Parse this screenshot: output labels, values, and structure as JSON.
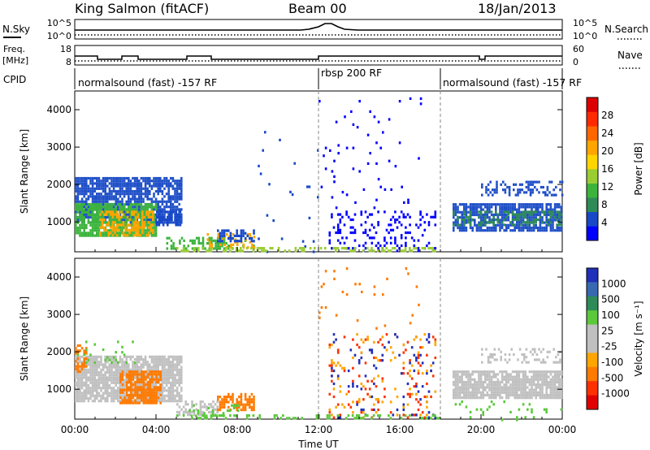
{
  "header": {
    "station": "King Salmon (fitACF)",
    "beam": "Beam 00",
    "date": "18/Jan/2013"
  },
  "summary": {
    "nsky_label": "N.Sky",
    "nsky_ticks": [
      "10^5",
      "10^0"
    ],
    "nsearch_label": "N.Search",
    "nsearch_ticks": [
      "10^5",
      "10^0"
    ],
    "freq_label_line1": "Freq.",
    "freq_label_line2": "[MHz]",
    "freq_ticks": [
      "18",
      "8"
    ],
    "nave_label": "Nave",
    "nave_ticks": [
      "60",
      "0"
    ],
    "cpid_label": "CPID",
    "cpid_segments": [
      {
        "label": "normalsound (fast) -157 RF",
        "start_h": 0,
        "end_h": 12
      },
      {
        "label": "rbsp 200 RF",
        "start_h": 12,
        "end_h": 18
      },
      {
        "label": "normalsound (fast) -157 RF",
        "start_h": 18,
        "end_h": 24
      }
    ]
  },
  "chart_data": [
    {
      "type": "heatmap",
      "quantity": "power",
      "ylabel": "Slant Range [km]",
      "ylim": [
        200,
        4500
      ],
      "yticks": [
        1000,
        2000,
        3000,
        4000
      ],
      "xlim": [
        0,
        24
      ],
      "colorbar": {
        "label": "Power [dB]",
        "ticks": [
          "4",
          "8",
          "12",
          "16",
          "20",
          "24",
          "28"
        ],
        "colors": [
          "#0000ff",
          "#1848c8",
          "#2e8b57",
          "#3cb43c",
          "#9acd32",
          "#ffd400",
          "#ffa500",
          "#ff6600",
          "#ff2a00",
          "#dd0000"
        ]
      },
      "regions": [
        {
          "t0": 0.0,
          "t1": 5.2,
          "r0": 1000,
          "r1": 2200,
          "color": "#2050c8",
          "density": 0.8
        },
        {
          "t0": 0.0,
          "t1": 4.0,
          "r0": 650,
          "r1": 1500,
          "color": "#3cb43c",
          "density": 0.8
        },
        {
          "t0": 1.2,
          "t1": 3.8,
          "r0": 620,
          "r1": 1300,
          "color": "#ffa500",
          "density": 0.55
        },
        {
          "t0": 4.0,
          "t1": 5.2,
          "r0": 900,
          "r1": 1300,
          "color": "#1848c8",
          "density": 0.6
        },
        {
          "t0": 4.5,
          "t1": 8.8,
          "r0": 300,
          "r1": 600,
          "color": "#3cb43c",
          "density": 0.45
        },
        {
          "t0": 6.5,
          "t1": 8.8,
          "r0": 300,
          "r1": 700,
          "color": "#ffa500",
          "density": 0.35
        },
        {
          "t0": 7.0,
          "t1": 8.8,
          "r0": 500,
          "r1": 800,
          "color": "#1848c8",
          "density": 0.5
        },
        {
          "t0": 12.5,
          "t1": 17.8,
          "r0": 250,
          "r1": 1300,
          "color": "#0000ff",
          "density": 0.18
        },
        {
          "t0": 12.0,
          "t1": 17.0,
          "r0": 1300,
          "r1": 4400,
          "color": "#0000ff",
          "density": 0.03
        },
        {
          "t0": 8.8,
          "t1": 12.0,
          "r0": 200,
          "r1": 3500,
          "color": "#1848c8",
          "density": 0.015
        },
        {
          "t0": 18.6,
          "t1": 24.0,
          "r0": 800,
          "r1": 1500,
          "color": "#2050c8",
          "density": 0.75
        },
        {
          "t0": 18.6,
          "t1": 24.0,
          "r0": 900,
          "r1": 1300,
          "color": "#2e8b57",
          "density": 0.4
        },
        {
          "t0": 20.0,
          "t1": 24.0,
          "r0": 1700,
          "r1": 2100,
          "color": "#2050c8",
          "density": 0.35
        },
        {
          "t0": 5.0,
          "t1": 18.0,
          "r0": 200,
          "r1": 330,
          "color": "#9acd32",
          "density": 0.35
        }
      ]
    },
    {
      "type": "heatmap",
      "quantity": "velocity",
      "ylabel": "Slant Range [km]",
      "ylim": [
        200,
        4500
      ],
      "yticks": [
        1000,
        2000,
        3000,
        4000
      ],
      "xlim": [
        0,
        24
      ],
      "xlabel": "Time UT",
      "xticks": [
        "00:00",
        "04:00",
        "08:00",
        "12:00",
        "16:00",
        "20:00",
        "00:00"
      ],
      "colorbar": {
        "label": "Velocity [m s⁻¹]",
        "ticks": [
          "1000",
          "500",
          "100",
          "25",
          "-25",
          "-100",
          "-500",
          "-1000"
        ],
        "colors": [
          "#2030b8",
          "#3868b0",
          "#2e8b57",
          "#5cc83c",
          "#c0c0c0",
          "#c0c0c0",
          "#ffa500",
          "#ff7a00",
          "#ff3000",
          "#e00000"
        ]
      },
      "regions": [
        {
          "t0": 0.0,
          "t1": 5.2,
          "r0": 700,
          "r1": 1900,
          "color": "#c0c0c0",
          "density": 0.85
        },
        {
          "t0": 2.2,
          "t1": 4.2,
          "r0": 650,
          "r1": 1500,
          "color": "#ff7a00",
          "density": 0.8
        },
        {
          "t0": 0.0,
          "t1": 0.6,
          "r0": 1500,
          "r1": 2200,
          "color": "#ff7a00",
          "density": 0.5
        },
        {
          "t0": 0.0,
          "t1": 3.0,
          "r0": 1700,
          "r1": 2300,
          "color": "#5cc83c",
          "density": 0.08
        },
        {
          "t0": 5.0,
          "t1": 7.0,
          "r0": 350,
          "r1": 700,
          "color": "#c0c0c0",
          "density": 0.45
        },
        {
          "t0": 7.0,
          "t1": 8.8,
          "r0": 450,
          "r1": 900,
          "color": "#ff7a00",
          "density": 0.55
        },
        {
          "t0": 5.5,
          "t1": 8.0,
          "r0": 300,
          "r1": 600,
          "color": "#5cc83c",
          "density": 0.25
        },
        {
          "t0": 12.5,
          "t1": 17.8,
          "r0": 250,
          "r1": 2500,
          "color": "#ff3000",
          "density": 0.05
        },
        {
          "t0": 12.5,
          "t1": 17.8,
          "r0": 250,
          "r1": 2500,
          "color": "#2030b8",
          "density": 0.05
        },
        {
          "t0": 12.5,
          "t1": 17.8,
          "r0": 250,
          "r1": 2500,
          "color": "#ffa500",
          "density": 0.05
        },
        {
          "t0": 12.0,
          "t1": 17.0,
          "r0": 2500,
          "r1": 4400,
          "color": "#ff7a00",
          "density": 0.02
        },
        {
          "t0": 18.6,
          "t1": 24.0,
          "r0": 800,
          "r1": 1500,
          "color": "#c0c0c0",
          "density": 0.85
        },
        {
          "t0": 18.6,
          "t1": 24.0,
          "r0": 200,
          "r1": 700,
          "color": "#5cc83c",
          "density": 0.08
        },
        {
          "t0": 20.0,
          "t1": 24.0,
          "r0": 1700,
          "r1": 2100,
          "color": "#c0c0c0",
          "density": 0.35
        },
        {
          "t0": 5.0,
          "t1": 18.0,
          "r0": 200,
          "r1": 330,
          "color": "#5cc83c",
          "density": 0.3
        }
      ]
    }
  ]
}
